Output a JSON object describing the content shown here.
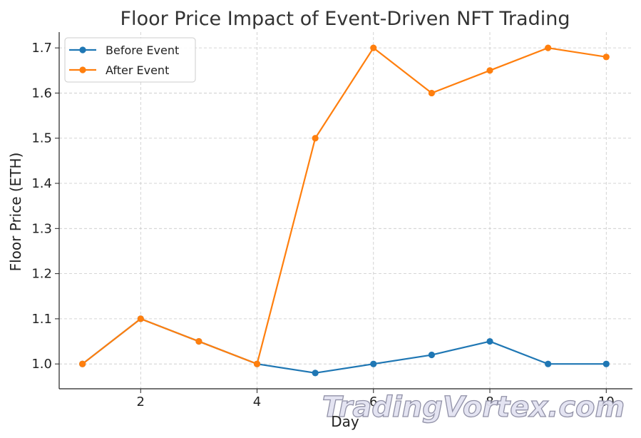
{
  "chart_data": {
    "type": "line",
    "title": "Floor Price Impact of Event-Driven NFT Trading",
    "xlabel": "Day",
    "ylabel": "Floor Price (ETH)",
    "x": [
      1,
      2,
      3,
      4,
      5,
      6,
      7,
      8,
      9,
      10
    ],
    "xlim": [
      0.6,
      10.45
    ],
    "ylim": [
      0.945,
      1.735
    ],
    "xticks": [
      2,
      4,
      6,
      8,
      10
    ],
    "yticks": [
      1.0,
      1.1,
      1.2,
      1.3,
      1.4,
      1.5,
      1.6,
      1.7
    ],
    "ytick_labels": [
      "1.0",
      "1.1",
      "1.2",
      "1.3",
      "1.4",
      "1.5",
      "1.6",
      "1.7"
    ],
    "grid": true,
    "legend_position": "top-left",
    "series": [
      {
        "name": "Before Event",
        "color": "#1f77b4",
        "values": [
          1.0,
          1.1,
          1.05,
          1.0,
          0.98,
          1.0,
          1.02,
          1.05,
          1.0,
          1.0
        ]
      },
      {
        "name": "After Event",
        "color": "#ff7f0e",
        "values": [
          1.0,
          1.1,
          1.05,
          1.0,
          1.5,
          1.7,
          1.6,
          1.65,
          1.7,
          1.68
        ]
      }
    ]
  },
  "watermark": "TradingVortex.com"
}
